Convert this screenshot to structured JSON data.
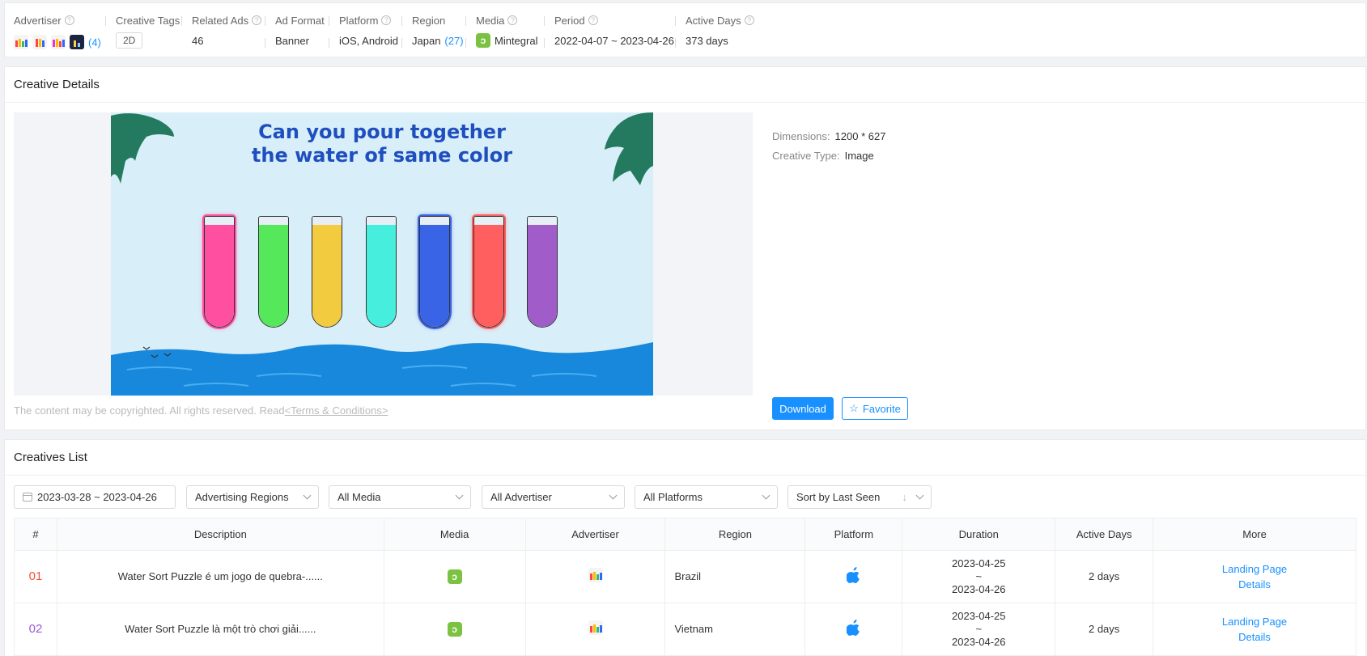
{
  "meta": {
    "advertiser": {
      "label": "Advertiser",
      "count": "(4)"
    },
    "creative_tags": {
      "label": "Creative Tags",
      "value": "2D"
    },
    "related_ads": {
      "label": "Related Ads",
      "value": "46"
    },
    "ad_format": {
      "label": "Ad Format",
      "value": "Banner"
    },
    "platform": {
      "label": "Platform",
      "value": "iOS, Android"
    },
    "region": {
      "label": "Region",
      "value": "Japan",
      "count": "(27)"
    },
    "media": {
      "label": "Media",
      "value": "Mintegral"
    },
    "period": {
      "label": "Period",
      "value": "2022-04-07 ~ 2023-04-26"
    },
    "active_days": {
      "label": "Active Days",
      "value": "373 days"
    }
  },
  "details": {
    "title": "Creative Details",
    "ad_headline_1": "Can you pour together",
    "ad_headline_2": "the water of same color",
    "dimensions_label": "Dimensions:",
    "dimensions_value": "1200 * 627",
    "type_label": "Creative Type:",
    "type_value": "Image",
    "disclaimer": "The content may be copyrighted. All rights reserved. Read",
    "terms": "<Terms & Conditions>",
    "download": "Download",
    "favorite": "Favorite",
    "tube_colors": [
      "#ff4fa0",
      "#55e85a",
      "#f2cb3f",
      "#45eedd",
      "#3a64e6",
      "#ff5f5f",
      "#a05cc8"
    ]
  },
  "list": {
    "title": "Creatives List",
    "filters": {
      "date": "2023-03-28 ~ 2023-04-26",
      "regions": "Advertising Regions",
      "media": "All Media",
      "advertiser": "All Advertiser",
      "platforms": "All Platforms",
      "sort": "Sort by Last Seen"
    },
    "columns": [
      "#",
      "Description",
      "Media",
      "Advertiser",
      "Region",
      "Platform",
      "Duration",
      "Active Days",
      "More"
    ],
    "rows": [
      {
        "rank": "01",
        "rank_color": "#f5503a",
        "description": "Water Sort Puzzle é um jogo de quebra-......",
        "region": "Brazil",
        "dur_start": "2023-04-25",
        "dur_sep": "~",
        "dur_end": "2023-04-26",
        "active": "2 days",
        "more_1": "Landing Page",
        "more_2": "Details"
      },
      {
        "rank": "02",
        "rank_color": "#9b5ad6",
        "description": "Water Sort Puzzle là một trò chơi giải......",
        "region": "Vietnam",
        "dur_start": "2023-04-25",
        "dur_sep": "~",
        "dur_end": "2023-04-26",
        "active": "2 days",
        "more_1": "Landing Page",
        "more_2": "Details"
      }
    ]
  }
}
